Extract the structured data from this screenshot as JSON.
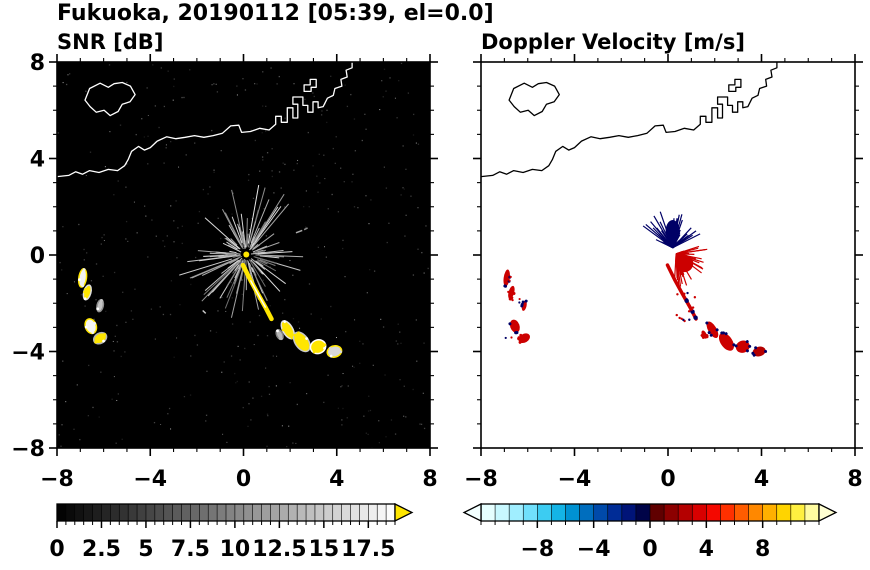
{
  "chart_data": {
    "type": "heatmap",
    "title": "Fukuoka, 20190112 [05:39, el=0.0]",
    "panels": [
      {
        "id": "snr",
        "title": "SNR [dB]",
        "background": "#000000",
        "coast_color": "#ffffff",
        "xlim": [
          -8,
          8
        ],
        "ylim": [
          -8,
          8
        ],
        "xticks": [
          -8,
          -4,
          0,
          4,
          8
        ],
        "yticks": [
          8,
          4,
          0,
          -4,
          -8
        ],
        "xtick_labels": [
          "−8",
          "−4",
          "0",
          "4",
          "8"
        ],
        "ytick_labels": [
          "8",
          "4",
          "0",
          "−4",
          "−8"
        ],
        "minor_tick_step": 1,
        "colorbar": {
          "orientation": "horizontal",
          "style": "grayscale",
          "min": 0,
          "max": 19,
          "step": 0.5,
          "start_color": "#000000",
          "end_color": "#ffffff",
          "over_arrow_color": "#ffe600",
          "tick_values": [
            0,
            2.5,
            5,
            7.5,
            10,
            12.5,
            15,
            17.5
          ],
          "tick_labels": [
            "0",
            "2.5",
            "5",
            "7.5",
            "10",
            "12.5",
            "15",
            "17.5"
          ]
        }
      },
      {
        "id": "vel",
        "title": "Doppler Velocity [m/s]",
        "background": "#ffffff",
        "coast_color": "#000000",
        "xlim": [
          -8,
          8
        ],
        "ylim": [
          -8,
          8
        ],
        "xticks": [
          -8,
          -4,
          0,
          4,
          8
        ],
        "yticks": [
          8,
          4,
          0,
          -4,
          -8
        ],
        "xtick_labels": [
          "−8",
          "−4",
          "0",
          "4",
          "8"
        ],
        "ytick_labels": [
          "8",
          "4",
          "0",
          "−4",
          "−8"
        ],
        "minor_tick_step": 1,
        "colorbar": {
          "orientation": "horizontal",
          "style": "segments",
          "min": -12,
          "max": 12,
          "step": 1,
          "segment_colors": [
            "#E6FFFF",
            "#C8F8FF",
            "#A0EEFF",
            "#70E0FC",
            "#3CCCF2",
            "#14B4E6",
            "#0092D2",
            "#006EBE",
            "#004AAA",
            "#002C96",
            "#001478",
            "#000448",
            "#600000",
            "#8C0000",
            "#B40000",
            "#D80000",
            "#F40800",
            "#FF3000",
            "#FF5C00",
            "#FF8800",
            "#FFB000",
            "#FFD400",
            "#FFF040",
            "#FFFCA0"
          ],
          "under_arrow_color": "#F2FFFF",
          "over_arrow_color": "#FFFFD2",
          "tick_values": [
            -8,
            -4,
            0,
            4,
            8
          ],
          "tick_labels": [
            "−8",
            "−4",
            "0",
            "4",
            "8"
          ]
        }
      }
    ],
    "coastline": {
      "mainland": [
        [
          -8,
          3.25
        ],
        [
          -7.5,
          3.3
        ],
        [
          -7.2,
          3.45
        ],
        [
          -6.9,
          3.35
        ],
        [
          -6.6,
          3.5
        ],
        [
          -6.2,
          3.42
        ],
        [
          -5.8,
          3.55
        ],
        [
          -5.4,
          3.5
        ],
        [
          -5.1,
          3.7
        ],
        [
          -4.95,
          3.95
        ],
        [
          -4.8,
          4.3
        ],
        [
          -4.5,
          4.5
        ],
        [
          -4.25,
          4.35
        ],
        [
          -4.0,
          4.45
        ],
        [
          -3.7,
          4.72
        ],
        [
          -3.3,
          4.9
        ],
        [
          -2.9,
          4.82
        ],
        [
          -2.5,
          4.88
        ],
        [
          -2.1,
          4.95
        ],
        [
          -1.7,
          4.88
        ],
        [
          -1.3,
          4.95
        ],
        [
          -0.9,
          5.05
        ],
        [
          -0.55,
          5.35
        ],
        [
          -0.2,
          5.38
        ],
        [
          -0.08,
          5.08
        ],
        [
          0.3,
          5.12
        ],
        [
          0.7,
          5.25
        ],
        [
          1.1,
          5.18
        ],
        [
          1.38,
          5.42
        ],
        [
          1.38,
          5.75
        ],
        [
          1.62,
          5.75
        ],
        [
          1.62,
          5.5
        ],
        [
          1.88,
          5.5
        ],
        [
          1.88,
          6.1
        ],
        [
          2.12,
          6.1
        ],
        [
          2.12,
          5.68
        ],
        [
          2.33,
          5.68
        ],
        [
          2.33,
          6.25
        ],
        [
          2.12,
          6.25
        ],
        [
          2.12,
          6.55
        ],
        [
          2.55,
          6.55
        ],
        [
          2.55,
          6.2
        ],
        [
          2.76,
          6.2
        ],
        [
          2.76,
          5.92
        ],
        [
          2.98,
          5.92
        ],
        [
          2.98,
          6.35
        ],
        [
          3.2,
          6.35
        ],
        [
          3.2,
          6.1
        ],
        [
          3.42,
          6.15
        ],
        [
          3.6,
          6.5
        ],
        [
          3.85,
          6.62
        ],
        [
          3.92,
          6.9
        ],
        [
          4.22,
          7.0
        ],
        [
          4.18,
          7.28
        ],
        [
          4.45,
          7.38
        ],
        [
          4.4,
          7.66
        ],
        [
          4.66,
          7.76
        ],
        [
          4.66,
          8.05
        ]
      ],
      "island": [
        [
          -6.8,
          6.42
        ],
        [
          -6.6,
          6.9
        ],
        [
          -6.15,
          7.12
        ],
        [
          -5.8,
          6.95
        ],
        [
          -5.55,
          7.1
        ],
        [
          -5.2,
          7.15
        ],
        [
          -4.85,
          7.0
        ],
        [
          -4.65,
          6.65
        ],
        [
          -4.87,
          6.35
        ],
        [
          -5.2,
          6.25
        ],
        [
          -5.38,
          5.95
        ],
        [
          -5.72,
          5.78
        ],
        [
          -5.98,
          6.0
        ],
        [
          -6.32,
          5.92
        ],
        [
          -6.58,
          6.15
        ]
      ],
      "dock": [
        [
          2.6,
          6.78
        ],
        [
          2.6,
          7.05
        ],
        [
          2.86,
          7.05
        ],
        [
          2.86,
          7.28
        ],
        [
          3.12,
          7.28
        ],
        [
          3.12,
          6.95
        ],
        [
          2.9,
          6.95
        ],
        [
          2.9,
          6.78
        ]
      ]
    },
    "radar_center": [
      0.12,
      0.02
    ],
    "echoes": {
      "snr_noise": {
        "count": 340,
        "seed": 7
      },
      "snr_spokes": {
        "count": 120,
        "seed": 42,
        "min_len": 0.3,
        "max_len": 2.5,
        "color_min": 105,
        "color_max": 235
      },
      "snr_center_color": "#ffe600",
      "vel_up_fan": {
        "seed": 11,
        "count": 80,
        "center": [
          0.2,
          0.3
        ],
        "angle_start": 25,
        "angle_end": 155,
        "max_len": 1.6,
        "color": "#000066",
        "core": {
          "x": 0.2,
          "y": 1.0,
          "rx": 0.3,
          "ry": 0.45
        }
      },
      "vel_down_fan": {
        "seed": 23,
        "count": 65,
        "center": [
          0.35,
          0.05
        ],
        "angle_start": -95,
        "angle_end": 20,
        "max_len": 1.45,
        "color": "#cc0000",
        "core": {
          "x": 0.7,
          "y": -0.35,
          "rx": 0.38,
          "ry": 0.36
        }
      },
      "arc": {
        "points": [
          [
            -0.02,
            -0.42
          ],
          [
            0.3,
            -1.05
          ],
          [
            0.62,
            -1.62
          ],
          [
            0.95,
            -2.18
          ],
          [
            1.2,
            -2.65
          ]
        ],
        "companion": [
          [
            0.45,
            -0.75
          ],
          [
            0.75,
            -1.35
          ],
          [
            1.02,
            -1.9
          ]
        ],
        "snr_color": "#ffe600",
        "vel_color": "#cc0000",
        "vel_dots": [
          [
            0.8,
            -1.9
          ],
          [
            1.05,
            -2.35
          ],
          [
            1.18,
            -2.6
          ]
        ]
      },
      "blobs": [
        {
          "x": 1.9,
          "y": -3.1,
          "rx": 0.18,
          "ry": 0.38,
          "rot": -30,
          "snr": "#ffe600",
          "snr_edge": "#e0e0e0",
          "vel": "#cc0000",
          "vel_edge": "#000066"
        },
        {
          "x": 2.5,
          "y": -3.6,
          "rx": 0.25,
          "ry": 0.42,
          "rot": -35,
          "snr": "#ffe600",
          "snr_edge": "#c8c8c8",
          "vel": "#cc0000",
          "vel_edge": "#000066"
        },
        {
          "x": 3.2,
          "y": -3.8,
          "rx": 0.3,
          "ry": 0.25,
          "rot": -20,
          "snr": "#ffe600",
          "snr_edge": "#ffffff",
          "vel": "#cc0000",
          "vel_edge": "#000066"
        },
        {
          "x": 3.9,
          "y": -4.0,
          "rx": 0.28,
          "ry": 0.2,
          "rot": -15,
          "snr": "#d8d8d8",
          "snr_edge": "#ffe600",
          "vel": "#b40000",
          "vel_edge": "#000066"
        },
        {
          "x": 1.55,
          "y": -3.3,
          "rx": 0.1,
          "ry": 0.18,
          "rot": -25,
          "snr": "#b8b8b8",
          "snr_edge": "#808080",
          "vel": "#cc0000",
          "vel_edge": "#cc0000"
        },
        {
          "x": -6.9,
          "y": -0.95,
          "rx": 0.13,
          "ry": 0.35,
          "rot": 8,
          "snr": "#f0f0f0",
          "snr_edge": "#ffe600",
          "vel": "#cc0000",
          "vel_edge": "#000066"
        },
        {
          "x": -6.7,
          "y": -1.55,
          "rx": 0.12,
          "ry": 0.28,
          "rot": 15,
          "snr": "#ffe600",
          "snr_edge": "#dcdcdc",
          "vel": "#cc0000",
          "vel_edge": "#cc0000"
        },
        {
          "x": -6.15,
          "y": -2.1,
          "rx": 0.1,
          "ry": 0.22,
          "rot": 12,
          "snr": "#c4c4c4",
          "snr_edge": "#909090",
          "vel": "#cc0000",
          "vel_edge": "#000066"
        },
        {
          "x": -6.55,
          "y": -2.95,
          "rx": 0.2,
          "ry": 0.28,
          "rot": -20,
          "snr": "#f4f4f4",
          "snr_edge": "#ffe600",
          "vel": "#cc0000",
          "vel_edge": "#000066"
        },
        {
          "x": -6.15,
          "y": -3.45,
          "rx": 0.26,
          "ry": 0.18,
          "rot": -30,
          "snr": "#ffe600",
          "snr_edge": "#b4b4b4",
          "vel": "#cc0000",
          "vel_edge": "#cc0000"
        }
      ],
      "dashes": [
        {
          "x1": 2.25,
          "y1": 0.92,
          "x2": 2.52,
          "y2": 1.02,
          "snr": "#aaaaaa",
          "vel": "none"
        },
        {
          "x1": 2.6,
          "y1": 1.05,
          "x2": 2.75,
          "y2": 1.12,
          "snr": "#8a8a8a",
          "vel": "none"
        },
        {
          "x1": -1.75,
          "y1": -2.3,
          "x2": -1.62,
          "y2": -2.42,
          "snr": "#cccccc",
          "vel": "none"
        }
      ]
    }
  }
}
